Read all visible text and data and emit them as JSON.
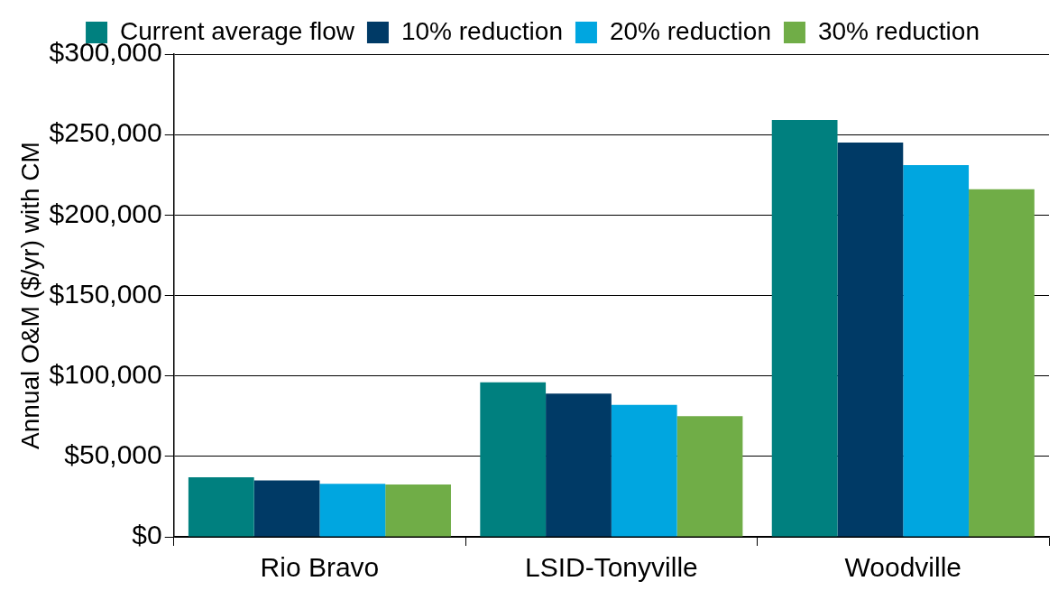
{
  "chart_data": {
    "type": "bar",
    "ylabel": "Annual O&M ($/yr) with CM",
    "categories": [
      "Rio Bravo",
      "LSID-Tonyville",
      "Woodville"
    ],
    "series": [
      {
        "name": "Current average flow",
        "color": "#00807f",
        "values": [
          37000,
          96000,
          259000
        ]
      },
      {
        "name": "10% reduction",
        "color": "#003a66",
        "values": [
          35000,
          89000,
          245000
        ]
      },
      {
        "name": "20% reduction",
        "color": "#00a6e0",
        "values": [
          33000,
          82000,
          231000
        ]
      },
      {
        "name": "30% reduction",
        "color": "#70ad47",
        "values": [
          32500,
          75000,
          216000
        ]
      }
    ],
    "ylim": [
      0,
      300000
    ],
    "yticks": [
      {
        "value": 0,
        "label": "$0"
      },
      {
        "value": 50000,
        "label": "$50,000"
      },
      {
        "value": 100000,
        "label": "$100,000"
      },
      {
        "value": 150000,
        "label": "$150,000"
      },
      {
        "value": 200000,
        "label": "$200,000"
      },
      {
        "value": 250000,
        "label": "$250,000"
      },
      {
        "value": 300000,
        "label": "$300,000"
      }
    ],
    "grid": "y",
    "legend": "top"
  }
}
